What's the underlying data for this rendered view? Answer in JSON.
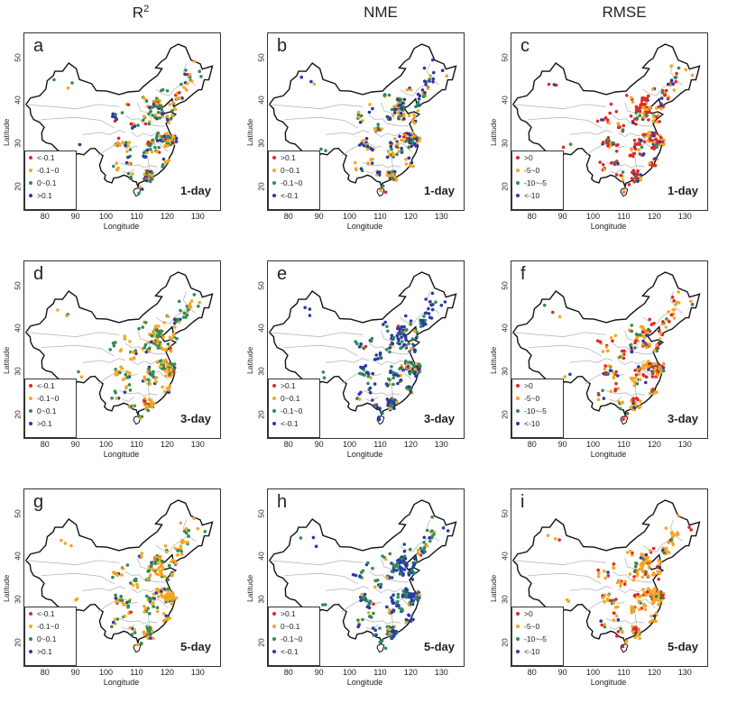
{
  "columns": [
    {
      "label": "R",
      "sup": "2"
    },
    {
      "label": "NME",
      "sup": ""
    },
    {
      "label": "RMSE",
      "sup": ""
    }
  ],
  "axis": {
    "xlabel": "Longitude",
    "ylabel": "Latitude",
    "xticks": [
      "80",
      "90",
      "100",
      "110",
      "120",
      "130"
    ],
    "yticks": [
      "20",
      "30",
      "40",
      "50"
    ]
  },
  "colors": {
    "red": "#e0282a",
    "orange": "#f5a623",
    "green": "#2e8b57",
    "blue": "#2a3aa8"
  },
  "legends": {
    "r2": [
      "<-0.1",
      "-0.1~0",
      "0~0.1",
      ">0.1"
    ],
    "nme": [
      ">0.1",
      "0~0.1",
      "-0.1~0",
      "<-0.1"
    ],
    "rmse": [
      ">0",
      "-5~0",
      "-10~-5",
      "<-10"
    ]
  },
  "panels": [
    {
      "letter": "a",
      "lead": "1-day",
      "legend": "r2",
      "mix": {
        "red": 0.08,
        "orange": 0.36,
        "green": 0.36,
        "blue": 0.2
      }
    },
    {
      "letter": "b",
      "lead": "1-day",
      "legend": "nme",
      "mix": {
        "red": 0.04,
        "orange": 0.36,
        "green": 0.22,
        "blue": 0.38
      }
    },
    {
      "letter": "c",
      "lead": "1-day",
      "legend": "rmse",
      "mix": {
        "red": 0.55,
        "orange": 0.22,
        "green": 0.12,
        "blue": 0.11
      }
    },
    {
      "letter": "d",
      "lead": "3-day",
      "legend": "r2",
      "mix": {
        "red": 0.02,
        "orange": 0.55,
        "green": 0.35,
        "blue": 0.08
      }
    },
    {
      "letter": "e",
      "lead": "3-day",
      "legend": "nme",
      "mix": {
        "red": 0.02,
        "orange": 0.12,
        "green": 0.36,
        "blue": 0.5
      }
    },
    {
      "letter": "f",
      "lead": "3-day",
      "legend": "rmse",
      "mix": {
        "red": 0.3,
        "orange": 0.5,
        "green": 0.12,
        "blue": 0.08
      }
    },
    {
      "letter": "g",
      "lead": "5-day",
      "legend": "r2",
      "mix": {
        "red": 0.02,
        "orange": 0.58,
        "green": 0.34,
        "blue": 0.06
      }
    },
    {
      "letter": "h",
      "lead": "5-day",
      "legend": "nme",
      "mix": {
        "red": 0.02,
        "orange": 0.1,
        "green": 0.4,
        "blue": 0.48
      }
    },
    {
      "letter": "i",
      "lead": "5-day",
      "legend": "rmse",
      "mix": {
        "red": 0.22,
        "orange": 0.6,
        "green": 0.1,
        "blue": 0.08
      }
    }
  ]
}
